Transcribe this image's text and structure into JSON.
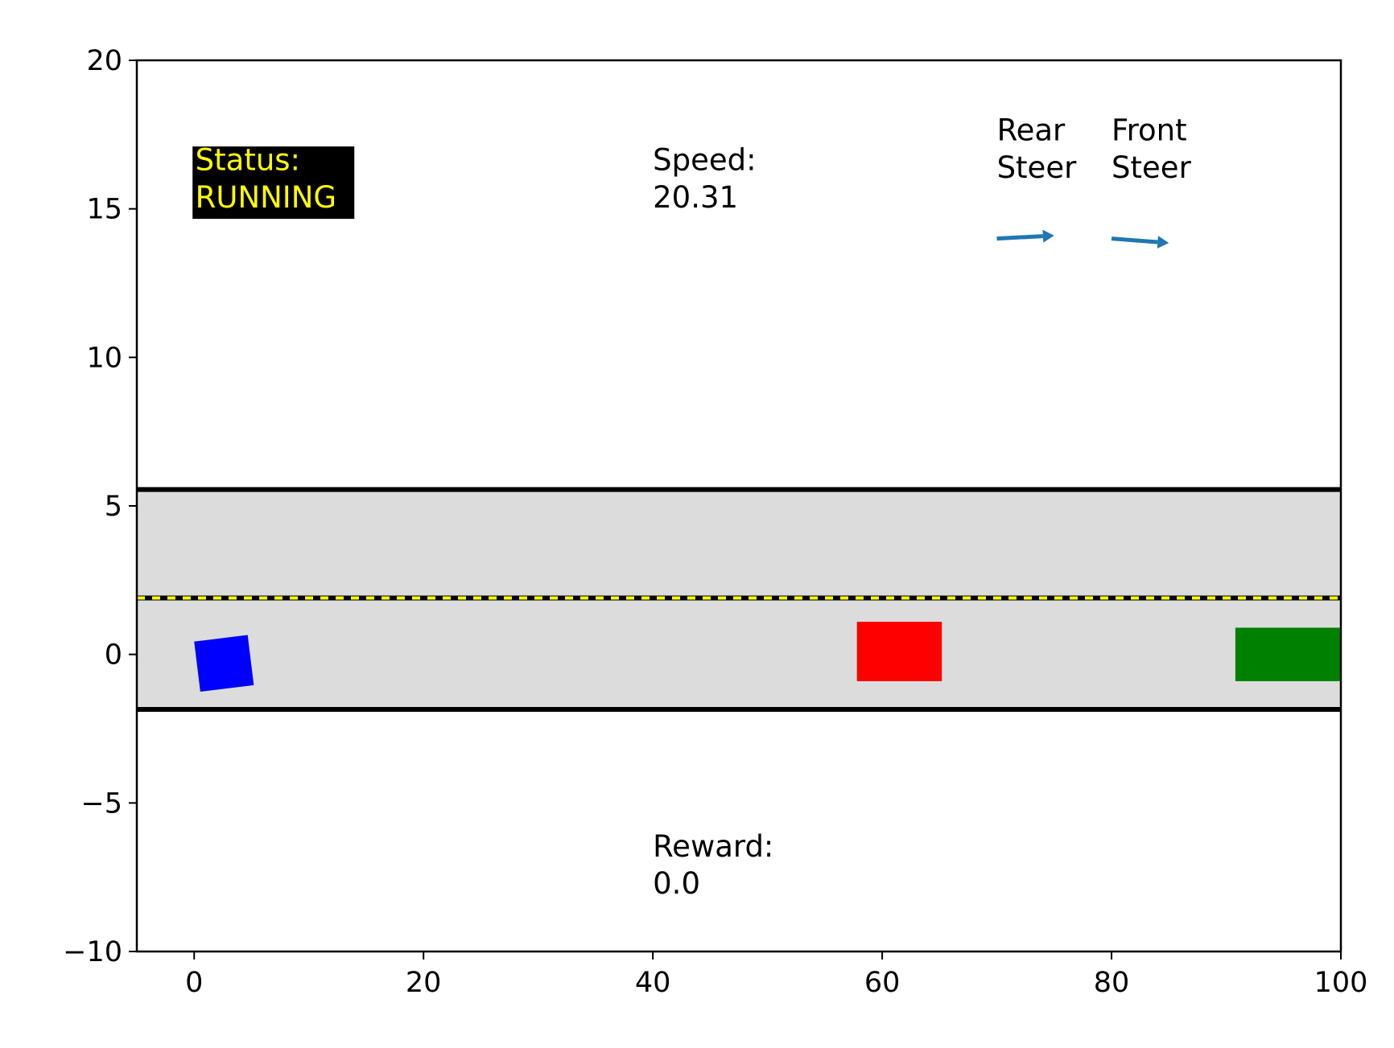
{
  "scene": {
    "xlim": [
      -5,
      100
    ],
    "ylim": [
      -10,
      20
    ],
    "x_ticks": [
      0,
      20,
      40,
      60,
      80,
      100
    ],
    "y_ticks": [
      -10,
      -5,
      0,
      5,
      10,
      15,
      20
    ],
    "x_tick_labels": [
      "0",
      "20",
      "40",
      "60",
      "80",
      "100"
    ],
    "y_tick_labels": [
      "−10",
      "−5",
      "0",
      "5",
      "10",
      "15",
      "20"
    ]
  },
  "hud": {
    "status_label": "Status:",
    "status_value": "RUNNING",
    "speed_label": "Speed:",
    "speed_value": "20.31",
    "reward_label": "Reward:",
    "reward_value": "0.0",
    "rear_steer_line1": "Rear",
    "rear_steer_line2": "Steer",
    "front_steer_line1": "Front",
    "front_steer_line2": "Steer"
  },
  "road": {
    "upper_edge_y": 5.55,
    "lower_edge_y": -1.85,
    "center_line_y": 1.9,
    "surface_color": "#dcdcdc",
    "edge_color": "#000000",
    "center_line_colors": [
      "#000000",
      "#ffff00"
    ]
  },
  "steering": {
    "rear": {
      "x": 70,
      "y": 14,
      "dx": 5,
      "dy": 0.1
    },
    "front": {
      "x": 80,
      "y": 14,
      "dx": 5,
      "dy": -0.15
    },
    "arrow_color": "#1f77b4"
  },
  "vehicles": [
    {
      "id": "ego",
      "color": "#0000ff",
      "cx": 2.6,
      "cy": -0.3,
      "w": 4.7,
      "h": 1.7,
      "angle_deg": 7
    },
    {
      "id": "obstacle-red",
      "color": "#ff0000",
      "cx": 61.5,
      "cy": 0.1,
      "w": 7.4,
      "h": 2.0,
      "angle_deg": 0
    },
    {
      "id": "obstacle-green",
      "color": "#008000",
      "cx": 95.4,
      "cy": 0.0,
      "w": 9.2,
      "h": 1.8,
      "angle_deg": 0
    }
  ]
}
